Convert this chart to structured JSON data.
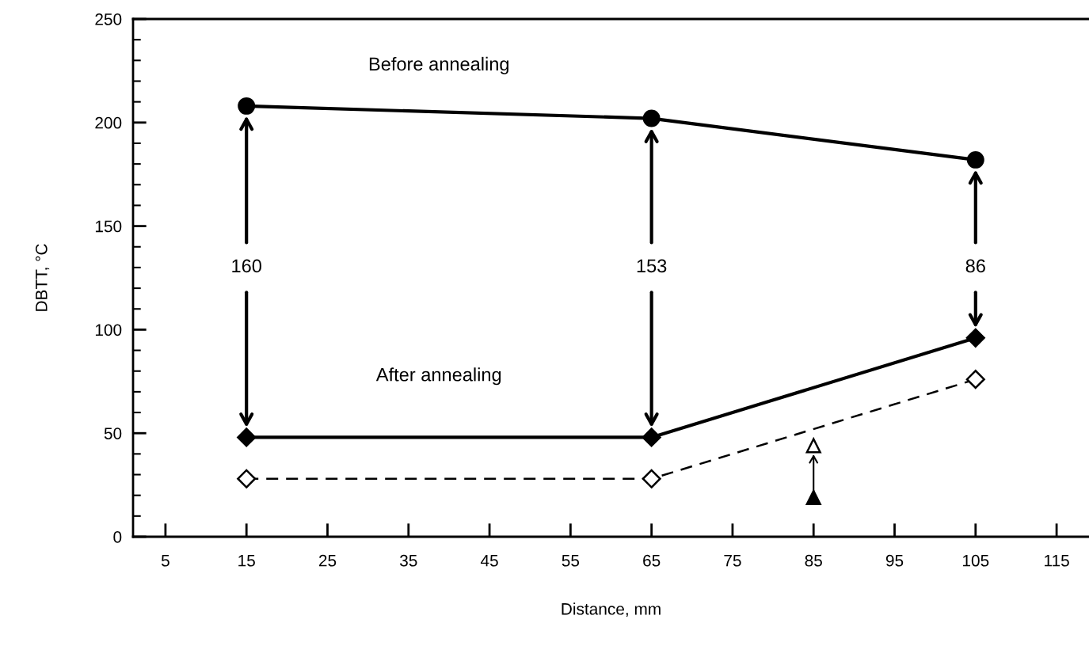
{
  "chart_data": {
    "type": "line",
    "xlabel": "Distance, mm",
    "ylabel": "DBTT, °C",
    "xlim": [
      1,
      119
    ],
    "xticks": [
      5,
      15,
      25,
      35,
      45,
      55,
      65,
      75,
      85,
      95,
      105,
      115
    ],
    "ylim": [
      0,
      250
    ],
    "yticks": [
      0,
      50,
      100,
      150,
      200,
      250
    ],
    "grid": false,
    "legend": false,
    "series": [
      {
        "name": "Before annealing",
        "color": "#000000",
        "x": [
          15,
          65,
          105
        ],
        "values": [
          208,
          202,
          182
        ],
        "marker": "circle",
        "line_style": "solid"
      },
      {
        "name": "After annealing",
        "color": "#000000",
        "x": [
          15,
          65,
          105
        ],
        "values": [
          48,
          48,
          96
        ],
        "marker": "diamond",
        "line_style": "solid"
      },
      {
        "color": "#000000",
        "x": [
          15,
          65,
          105
        ],
        "values": [
          28,
          28,
          76
        ],
        "marker": "diamond",
        "line_style": "dashed"
      },
      {
        "type": "scatter",
        "color": "#000000",
        "x": [
          85
        ],
        "values": [
          44
        ],
        "marker": "triangle"
      },
      {
        "type": "scatter",
        "color": "#000000",
        "x": [
          85
        ],
        "values": [
          19
        ],
        "marker": "triangle"
      }
    ],
    "annotations": [
      "160",
      "153",
      "86"
    ]
  }
}
